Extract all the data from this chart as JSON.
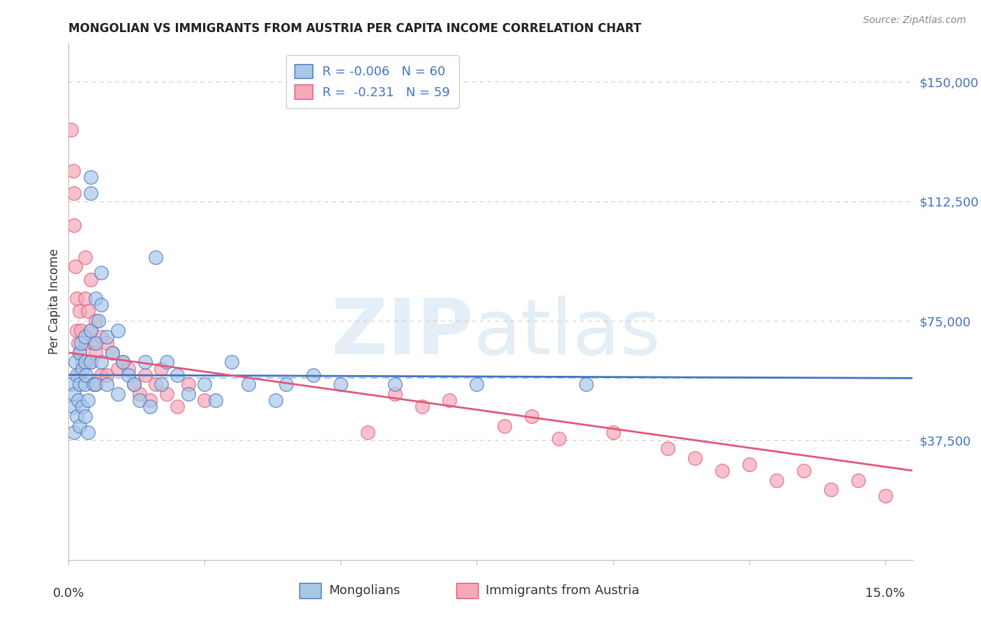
{
  "title": "MONGOLIAN VS IMMIGRANTS FROM AUSTRIA PER CAPITA INCOME CORRELATION CHART",
  "source": "Source: ZipAtlas.com",
  "ylabel": "Per Capita Income",
  "ytick_labels": [
    "$37,500",
    "$75,000",
    "$112,500",
    "$150,000"
  ],
  "ytick_values": [
    37500,
    75000,
    112500,
    150000
  ],
  "ylim": [
    0,
    162000
  ],
  "xlim": [
    0.0,
    0.155
  ],
  "legend_mongolian": "R = -0.006   N = 60",
  "legend_austria": "R =  -0.231   N = 59",
  "mongolian_color": "#a8c8e8",
  "austria_color": "#f4a8b8",
  "mongolian_line_color": "#4472c4",
  "austria_line_color": "#e05878",
  "background_color": "#ffffff",
  "grid_color": "#cccccc",
  "label_color": "#4472c4",
  "dashed_line_y": 57000,
  "mong_line_x0": 0.0,
  "mong_line_x1": 0.155,
  "mong_line_y0": 58000,
  "mong_line_y1": 57000,
  "aust_line_x0": 0.0,
  "aust_line_x1": 0.155,
  "aust_line_y0": 65000,
  "aust_line_y1": 28000,
  "mongolian_scatter_x": [
    0.0005,
    0.0008,
    0.001,
    0.001,
    0.0012,
    0.0015,
    0.0015,
    0.0018,
    0.002,
    0.002,
    0.002,
    0.0022,
    0.0025,
    0.0025,
    0.003,
    0.003,
    0.003,
    0.003,
    0.0032,
    0.0035,
    0.0035,
    0.004,
    0.004,
    0.004,
    0.004,
    0.0045,
    0.005,
    0.005,
    0.005,
    0.0055,
    0.006,
    0.006,
    0.006,
    0.007,
    0.007,
    0.008,
    0.009,
    0.009,
    0.01,
    0.011,
    0.012,
    0.013,
    0.014,
    0.015,
    0.016,
    0.017,
    0.018,
    0.02,
    0.022,
    0.025,
    0.027,
    0.03,
    0.033,
    0.038,
    0.04,
    0.045,
    0.05,
    0.06,
    0.075,
    0.095
  ],
  "mongolian_scatter_y": [
    55000,
    48000,
    52000,
    40000,
    62000,
    58000,
    45000,
    50000,
    65000,
    55000,
    42000,
    68000,
    60000,
    48000,
    70000,
    62000,
    55000,
    45000,
    58000,
    50000,
    40000,
    120000,
    115000,
    72000,
    62000,
    55000,
    82000,
    68000,
    55000,
    75000,
    90000,
    80000,
    62000,
    70000,
    55000,
    65000,
    72000,
    52000,
    62000,
    58000,
    55000,
    50000,
    62000,
    48000,
    95000,
    55000,
    62000,
    58000,
    52000,
    55000,
    50000,
    62000,
    55000,
    50000,
    55000,
    58000,
    55000,
    55000,
    55000,
    55000
  ],
  "austria_scatter_x": [
    0.0005,
    0.0008,
    0.001,
    0.001,
    0.0012,
    0.0015,
    0.0015,
    0.0018,
    0.002,
    0.002,
    0.002,
    0.0022,
    0.0025,
    0.003,
    0.003,
    0.003,
    0.0035,
    0.004,
    0.004,
    0.004,
    0.0045,
    0.005,
    0.005,
    0.005,
    0.006,
    0.006,
    0.007,
    0.007,
    0.008,
    0.009,
    0.01,
    0.011,
    0.012,
    0.013,
    0.014,
    0.015,
    0.016,
    0.017,
    0.018,
    0.02,
    0.022,
    0.025,
    0.055,
    0.06,
    0.065,
    0.07,
    0.08,
    0.085,
    0.09,
    0.1,
    0.11,
    0.115,
    0.12,
    0.125,
    0.13,
    0.135,
    0.14,
    0.145,
    0.15
  ],
  "austria_scatter_y": [
    135000,
    122000,
    115000,
    105000,
    92000,
    82000,
    72000,
    68000,
    78000,
    65000,
    58000,
    72000,
    62000,
    95000,
    82000,
    68000,
    78000,
    88000,
    72000,
    62000,
    68000,
    75000,
    65000,
    55000,
    70000,
    58000,
    68000,
    58000,
    65000,
    60000,
    62000,
    60000,
    55000,
    52000,
    58000,
    50000,
    55000,
    60000,
    52000,
    48000,
    55000,
    50000,
    40000,
    52000,
    48000,
    50000,
    42000,
    45000,
    38000,
    40000,
    35000,
    32000,
    28000,
    30000,
    25000,
    28000,
    22000,
    25000,
    20000
  ]
}
